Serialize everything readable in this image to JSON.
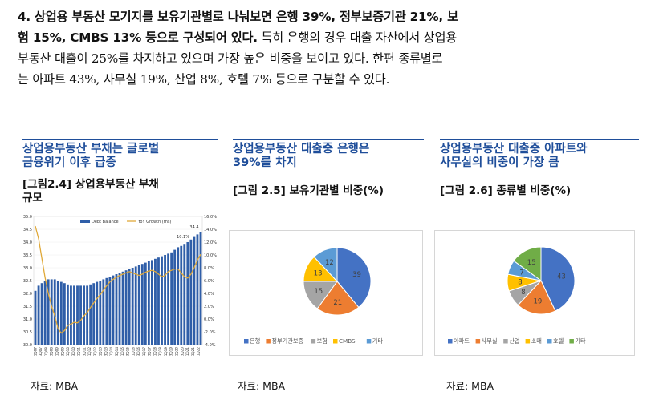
{
  "paragraph": {
    "bold1": "4. 상업용 부동산 모기지를 보유기관별로 나눠보면 은행 39%, 정부보증기관 21%, 보",
    "bold2": "험 15%, CMBS 13% 등으로 구성되어 있다.",
    "normal2": " 특히 은행의 경우 대출 자산에서 상업용",
    "line3": "부동산 대출이 25%를 차지하고 있으며 가장 높은 비중을 보이고 있다. 한편 종류별로",
    "line4": "는 아파트 43%, 사무실 19%, 산업 8%, 호텔 7% 등으로 구분할 수 있다."
  },
  "columns": [
    {
      "heading_line1": "상업용부동산 부채는 글로벌",
      "heading_line2": "금융위기 이후 급증",
      "figure_line1": "[그림2.4]  상업용부동산 부채",
      "figure_line2": "규모",
      "source": "자료: MBA"
    },
    {
      "heading_line1": "상업용부동산 대출중 은행은",
      "heading_line2": "39%를 차지",
      "figure_line1": "[그림 2.5] 보유기관별 비중(%)",
      "figure_line2": "",
      "source": "자료: MBA"
    },
    {
      "heading_line1": "상업용부동산 대출중 아파트와",
      "heading_line2": "사무실의 비중이 가장 큼",
      "figure_line1": "[그림 2.6] 종류별 비중(%)",
      "figure_line2": "",
      "source": "자료: MBA"
    }
  ],
  "chart_data": [
    {
      "type": "bar",
      "legend": [
        "Debt Balance",
        "YoY Growth (rhs)"
      ],
      "left_ticks": [
        "35.0",
        "34.5",
        "34.0",
        "33.5",
        "33.0",
        "32.5",
        "32.0",
        "31.5",
        "31.0",
        "30.5",
        "30.0"
      ],
      "right_ticks": [
        "16.0%",
        "14.0%",
        "12.0%",
        "10.0%",
        "8.0%",
        "6.0%",
        "4.0%",
        "2.0%",
        "0.0%",
        "-2.0%",
        "-4.0%"
      ],
      "ylim": [
        30.0,
        35.0
      ],
      "y2lim": [
        -4.0,
        16.0
      ],
      "x_labels": [
        "1Q07",
        "3Q07",
        "1Q08",
        "3Q08",
        "1Q09",
        "3Q09",
        "1Q10",
        "3Q10",
        "1Q11",
        "3Q11",
        "1Q12",
        "3Q12",
        "1Q13",
        "3Q13",
        "1Q14",
        "3Q14",
        "1Q15",
        "3Q15",
        "1Q16",
        "3Q16",
        "1Q17",
        "3Q17",
        "1Q18",
        "3Q18",
        "1Q19",
        "3Q19",
        "1Q20",
        "3Q20",
        "1Q21",
        "3Q21",
        "1Q22"
      ],
      "annotations": {
        "last_bar": "34.4",
        "last_growth": "10.1%"
      },
      "debt_balance": [
        32.1,
        32.3,
        32.4,
        32.5,
        32.55,
        32.55,
        32.55,
        32.5,
        32.45,
        32.4,
        32.35,
        32.3,
        32.3,
        32.3,
        32.3,
        32.3,
        32.3,
        32.35,
        32.4,
        32.45,
        32.5,
        32.55,
        32.6,
        32.65,
        32.7,
        32.75,
        32.8,
        32.85,
        32.9,
        32.95,
        33.0,
        33.05,
        33.1,
        33.15,
        33.2,
        33.25,
        33.3,
        33.35,
        33.4,
        33.45,
        33.5,
        33.55,
        33.6,
        33.7,
        33.8,
        33.85,
        33.9,
        34.0,
        34.1,
        34.2,
        34.3,
        34.4
      ],
      "yoy_growth": [
        14.5,
        12.5,
        9.5,
        6.5,
        4.0,
        2.0,
        0.5,
        -1.5,
        -2.2,
        -1.8,
        -1.0,
        -0.8,
        -0.5,
        -0.6,
        -0.2,
        0.5,
        1.0,
        1.8,
        2.5,
        3.2,
        3.8,
        4.5,
        5.2,
        5.8,
        6.2,
        6.5,
        6.8,
        7.0,
        7.2,
        7.4,
        7.2,
        7.0,
        6.8,
        7.0,
        7.3,
        7.5,
        7.6,
        7.4,
        7.0,
        6.6,
        6.8,
        7.4,
        7.6,
        7.8,
        7.8,
        7.2,
        6.6,
        6.4,
        7.0,
        8.0,
        9.2,
        10.1
      ]
    },
    {
      "type": "pie",
      "categories": [
        "은행",
        "정부기관보증",
        "보험",
        "CMBS",
        "기타"
      ],
      "values": [
        39,
        21,
        15,
        13,
        12
      ],
      "colors": [
        "#4472c4",
        "#ed7d31",
        "#a5a5a5",
        "#ffc000",
        "#5b9bd5"
      ]
    },
    {
      "type": "pie",
      "categories": [
        "아파트",
        "사무실",
        "산업",
        "소매",
        "호텔",
        "기타"
      ],
      "values": [
        43,
        19,
        8,
        8,
        7,
        15
      ],
      "colors": [
        "#4472c4",
        "#ed7d31",
        "#a5a5a5",
        "#ffc000",
        "#5b9bd5",
        "#70ad47"
      ]
    }
  ]
}
